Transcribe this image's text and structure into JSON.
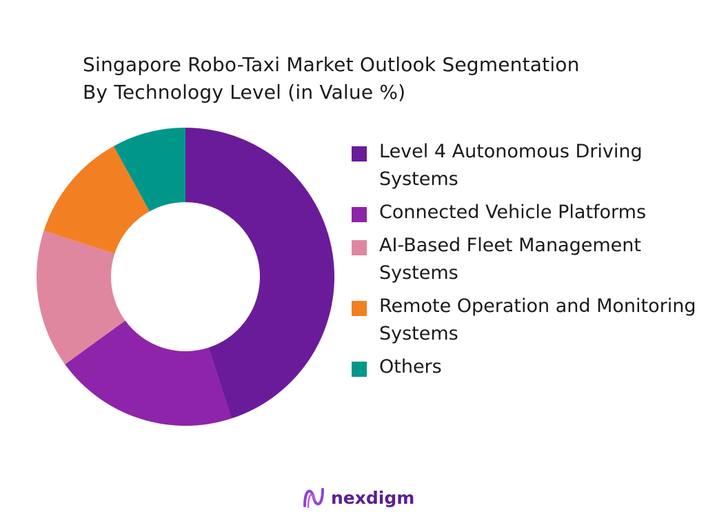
{
  "chart_data": {
    "type": "pie",
    "title": "Singapore Robo-Taxi Market Outlook Segmentation",
    "subtitle": "By Technology Level (in Value %)",
    "legend_position": "right",
    "categories": [
      "Level 4 Autonomous Driving Systems",
      "Connected Vehicle Platforms",
      "AI-Based Fleet Management Systems",
      "Remote Operation and Monitoring Systems",
      "Others"
    ],
    "values": [
      45,
      20,
      15,
      12,
      8
    ],
    "colors": [
      "#6a1b9a",
      "#8e24aa",
      "#e087a0",
      "#f28022",
      "#00978a"
    ]
  },
  "brand": {
    "name": "nexdigm",
    "icon": "nexdigm-logo-icon",
    "color": "#5b1f8e"
  }
}
